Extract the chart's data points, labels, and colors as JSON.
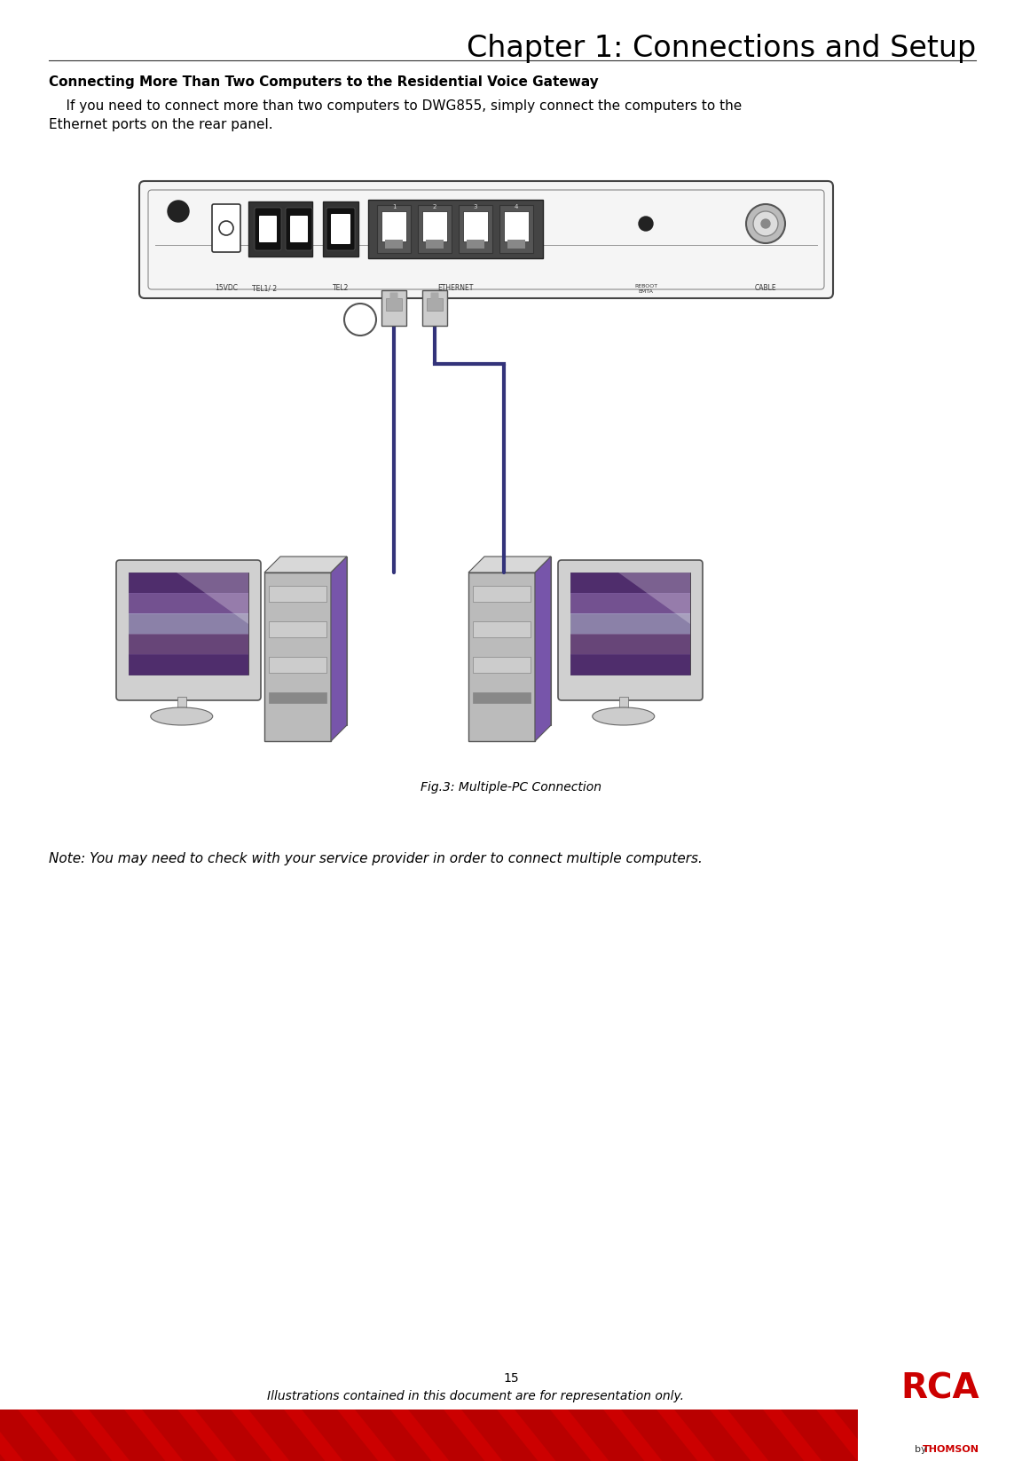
{
  "title": "Chapter 1: Connections and Setup",
  "section_heading": "Connecting More Than Two Computers to the Residential Voice Gateway",
  "body_line1": "    If you need to connect more than two computers to DWG855, simply connect the computers to the",
  "body_line2": "Ethernet ports on the rear panel.",
  "fig_caption": "Fig.3: Multiple-PC Connection",
  "note_text": "Note: You may need to check with your service provider in order to connect multiple computers.",
  "page_number": "15",
  "footer_text": "Illustrations contained in this document are for representation only.",
  "bg_color": "#ffffff",
  "title_font_size": 24,
  "heading_font_size": 11,
  "body_font_size": 11,
  "note_font_size": 11,
  "footer_font_size": 10,
  "red_bar_color": "#cc0000",
  "cable_color": "#33337a",
  "tower_purple": "#9966aa",
  "tower_gray": "#bbbbbb",
  "monitor_body": "#cccccc",
  "monitor_screen_dark": "#442255",
  "monitor_screen_mid": "#774488",
  "monitor_screen_light": "#aaaacc",
  "chassis_color": "#f5f5f5",
  "port_dark": "#333333",
  "port_mid": "#666666"
}
